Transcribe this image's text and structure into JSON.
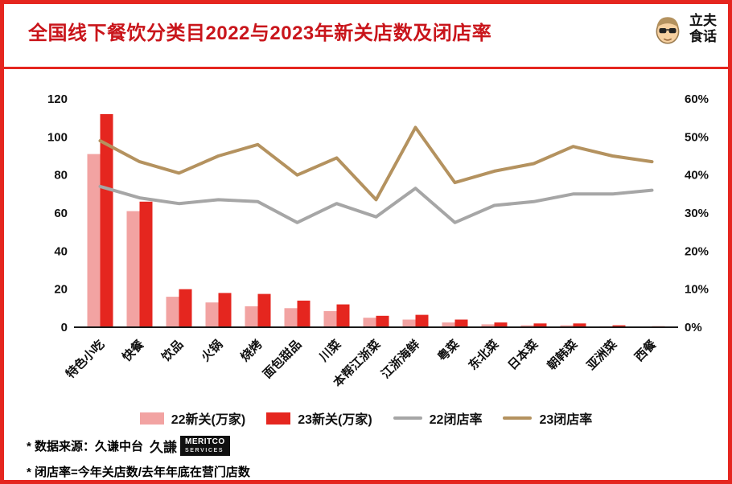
{
  "title": "全国线下餐饮分类目2022与2023年新关店数及闭店率",
  "logo": {
    "title_line1": "立夫",
    "title_line2": "食话"
  },
  "colors": {
    "frame": "#E5261F",
    "title": "#C9151B",
    "axis": "#1A1A1A"
  },
  "chart_data": {
    "type": "bar+line",
    "title": "全国线下餐饮分类目2022与2023年新关店数及闭店率",
    "categories": [
      "特色小吃",
      "快餐",
      "饮品",
      "火锅",
      "烧烤",
      "面包甜品",
      "川菜",
      "本帮江浙菜",
      "江浙海鲜",
      "粤菜",
      "东北菜",
      "日本菜",
      "朝韩菜",
      "亚洲菜",
      "西餐"
    ],
    "bar_series": [
      {
        "name": "22新关(万家)",
        "color": "#F2A3A2",
        "axis": "left",
        "values": [
          91,
          61,
          16,
          13,
          11,
          10,
          8.5,
          5,
          4,
          2.5,
          1.5,
          1,
          1,
          0.5,
          0.3
        ]
      },
      {
        "name": "23新关(万家)",
        "color": "#E5261F",
        "axis": "left",
        "values": [
          112,
          66,
          20,
          18,
          17.5,
          14,
          12,
          6,
          6.5,
          4,
          2.5,
          2,
          2,
          1,
          0.5
        ]
      }
    ],
    "line_series": [
      {
        "name": "22闭店率",
        "color": "#A6A6A6",
        "axis": "right",
        "values": [
          37,
          34,
          32.5,
          33.5,
          33,
          27.5,
          32.5,
          29,
          36.5,
          27.5,
          32,
          33,
          35,
          35,
          36
        ]
      },
      {
        "name": "23闭店率",
        "color": "#B4925F",
        "axis": "right",
        "values": [
          49,
          43.5,
          40.5,
          45,
          48,
          40,
          44.5,
          33.5,
          52.5,
          38,
          41,
          43,
          47.5,
          45,
          43.5
        ]
      }
    ],
    "left_axis": {
      "max": 120,
      "ticks": [
        0,
        20,
        40,
        60,
        80,
        100,
        120
      ]
    },
    "right_axis": {
      "max": 60,
      "ticks": [
        "0%",
        "10%",
        "20%",
        "30%",
        "40%",
        "50%",
        "60%"
      ]
    },
    "grid": "off",
    "legend_position": "bottom"
  },
  "footnotes": {
    "source": "* 数据来源：久谦中台",
    "meritco_cn": "久謙",
    "meritco_line1": "MERITCO",
    "meritco_line2": "SERVICES",
    "definition": "* 闭店率=今年关店数/去年年底在营门店数"
  }
}
